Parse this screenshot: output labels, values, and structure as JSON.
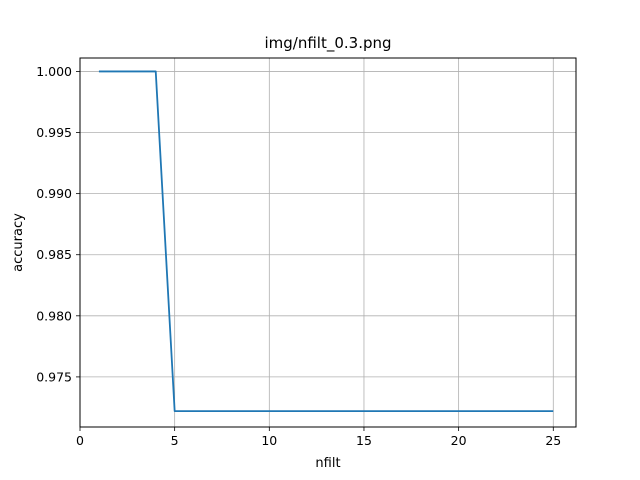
{
  "chart_data": {
    "type": "line",
    "title": "img/nfilt_0.3.png",
    "xlabel": "nfilt",
    "ylabel": "accuracy",
    "xlim": [
      0,
      26.2
    ],
    "ylim": [
      0.9709,
      1.0011
    ],
    "grid": true,
    "x_ticks": [
      0,
      5,
      10,
      15,
      20,
      25
    ],
    "x_tick_labels": [
      "0",
      "5",
      "10",
      "15",
      "20",
      "25"
    ],
    "y_ticks": [
      0.975,
      0.98,
      0.985,
      0.99,
      0.995,
      1.0
    ],
    "y_tick_labels": [
      "0.975",
      "0.980",
      "0.985",
      "0.990",
      "0.995",
      "1.000"
    ],
    "series": [
      {
        "color": "#1f77b4",
        "x": [
          1,
          2,
          3,
          4,
          5,
          6,
          7,
          8,
          9,
          10,
          11,
          12,
          13,
          14,
          15,
          16,
          17,
          18,
          19,
          20,
          21,
          22,
          23,
          24,
          25
        ],
        "y": [
          1.0,
          1.0,
          1.0,
          1.0,
          0.9722,
          0.9722,
          0.9722,
          0.9722,
          0.9722,
          0.9722,
          0.9722,
          0.9722,
          0.9722,
          0.9722,
          0.9722,
          0.9722,
          0.9722,
          0.9722,
          0.9722,
          0.9722,
          0.9722,
          0.9722,
          0.9722,
          0.9722,
          0.9722
        ]
      }
    ]
  }
}
